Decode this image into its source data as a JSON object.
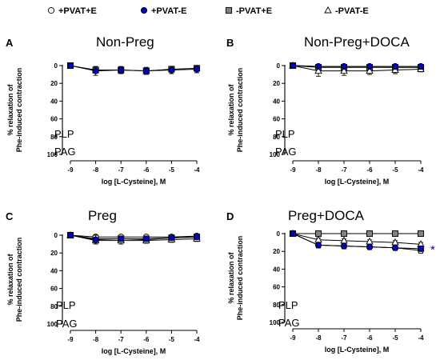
{
  "legend": [
    {
      "label": "+PVAT+E",
      "marker": "circle",
      "fill": "#ffffff"
    },
    {
      "label": "+PVAT-E",
      "marker": "circle",
      "fill": "#0000cc"
    },
    {
      "label": "-PVAT+E",
      "marker": "square",
      "fill": "#808080"
    },
    {
      "label": "-PVAT-E",
      "marker": "triangle",
      "fill": "#ffffff"
    }
  ],
  "colors": {
    "open": "#ffffff",
    "blue": "#0000cc",
    "gray": "#808080",
    "line": "#000000"
  },
  "chart_data": [
    {
      "type": "line",
      "panel": "A",
      "title": "Non-Preg",
      "xlabel": "log [L-Cysteine], M",
      "ylabel": [
        "% relaxation of",
        "Phe-induced contraction"
      ],
      "x": [
        -9,
        -8,
        -7,
        -6,
        -5,
        -4
      ],
      "xlim": [
        -9,
        -4
      ],
      "ylim": [
        0,
        100
      ],
      "y_inverted": true,
      "yticks": [
        0,
        20,
        40,
        60,
        80,
        100
      ],
      "annotations": [
        "PLP",
        "PAG"
      ],
      "series": [
        {
          "name": "+PVAT-E",
          "marker": "circle",
          "values": [
            0,
            6,
            5,
            6,
            5,
            4
          ],
          "err": [
            0,
            5,
            4,
            4,
            4,
            4
          ]
        },
        {
          "name": "-PVAT+E",
          "marker": "square",
          "values": [
            0,
            5,
            5,
            6,
            4,
            3
          ],
          "err": [
            0,
            3,
            3,
            3,
            3,
            3
          ]
        }
      ]
    },
    {
      "type": "line",
      "panel": "B",
      "title": "Non-Preg+DOCA",
      "xlabel": "log [L-Cysteine], M",
      "ylabel": [
        "% relaxation of",
        "Phe-induced contraction"
      ],
      "x": [
        -9,
        -8,
        -7,
        -6,
        -5,
        -4
      ],
      "xlim": [
        -9,
        -4
      ],
      "ylim": [
        0,
        100
      ],
      "y_inverted": true,
      "yticks": [
        0,
        20,
        40,
        60,
        80,
        100
      ],
      "annotations": [
        "PLP",
        "PAG"
      ],
      "series": [
        {
          "name": "+PVAT+E",
          "marker": "circle",
          "values": [
            0,
            1,
            1,
            1,
            1,
            1
          ],
          "err": [
            0,
            1,
            1,
            1,
            1,
            1
          ]
        },
        {
          "name": "+PVAT-E",
          "marker": "circle",
          "values": [
            0,
            1,
            1,
            1,
            1,
            1
          ],
          "err": [
            0,
            1,
            1,
            1,
            1,
            1
          ]
        },
        {
          "name": "-PVAT+E",
          "marker": "square",
          "values": [
            0,
            2,
            2,
            2,
            2,
            2
          ],
          "err": [
            0,
            1,
            1,
            1,
            1,
            1
          ]
        },
        {
          "name": "-PVAT-E",
          "marker": "triangle",
          "values": [
            0,
            6,
            6,
            6,
            5,
            4
          ],
          "err": [
            0,
            6,
            5,
            4,
            4,
            3
          ]
        }
      ]
    },
    {
      "type": "line",
      "panel": "C",
      "title": "Preg",
      "xlabel": "log [L-Cysteine], M",
      "ylabel": [
        "% relaxation of",
        "Phe-induced contraction"
      ],
      "x": [
        -9,
        -8,
        -7,
        -6,
        -5,
        -4
      ],
      "xlim": [
        -9,
        -4
      ],
      "ylim": [
        0,
        100
      ],
      "y_inverted": true,
      "yticks": [
        0,
        20,
        40,
        60,
        80,
        100
      ],
      "annotations": [
        "PLP",
        "PAG"
      ],
      "series": [
        {
          "name": "+PVAT+E",
          "marker": "circle",
          "values": [
            0,
            2,
            2,
            2,
            2,
            1
          ],
          "err": [
            0,
            1,
            1,
            1,
            1,
            1
          ]
        },
        {
          "name": "+PVAT-E",
          "marker": "circle",
          "values": [
            0,
            5,
            4,
            4,
            3,
            2
          ],
          "err": [
            0,
            5,
            3,
            3,
            2,
            2
          ]
        },
        {
          "name": "-PVAT+E",
          "marker": "square",
          "values": [
            0,
            4,
            4,
            5,
            3,
            2
          ],
          "err": [
            0,
            3,
            3,
            3,
            2,
            2
          ]
        },
        {
          "name": "-PVAT-E",
          "marker": "triangle",
          "values": [
            0,
            6,
            6,
            6,
            5,
            4
          ],
          "err": [
            0,
            4,
            4,
            3,
            3,
            3
          ]
        }
      ]
    },
    {
      "type": "line",
      "panel": "D",
      "title": "Preg+DOCA",
      "xlabel": "log [L-Cysteine], M",
      "ylabel": [
        "% relaxation of",
        "Phe-induced contraction"
      ],
      "x": [
        -9,
        -8,
        -7,
        -6,
        -5,
        -4
      ],
      "xlim": [
        -9,
        -4
      ],
      "ylim": [
        0,
        100
      ],
      "y_inverted": true,
      "yticks": [
        0,
        20,
        40,
        60,
        80,
        100
      ],
      "annotations": [
        "PLP",
        "PAG"
      ],
      "significance": "*",
      "series": [
        {
          "name": "+PVAT+E",
          "marker": "circle",
          "values": [
            0,
            13,
            14,
            15,
            16,
            19
          ],
          "err": [
            0,
            3,
            3,
            3,
            3,
            3
          ]
        },
        {
          "name": "+PVAT-E",
          "marker": "circle",
          "values": [
            0,
            13,
            14,
            15,
            16,
            17
          ],
          "err": [
            0,
            3,
            3,
            3,
            3,
            3
          ]
        },
        {
          "name": "-PVAT+E",
          "marker": "square",
          "values": [
            0,
            0,
            0,
            0,
            0,
            0
          ],
          "err": [
            0,
            0,
            0,
            0,
            0,
            0
          ]
        },
        {
          "name": "-PVAT-E",
          "marker": "triangle",
          "values": [
            0,
            7,
            8,
            9,
            10,
            12
          ],
          "err": [
            0,
            2,
            2,
            2,
            2,
            2
          ]
        }
      ]
    }
  ]
}
